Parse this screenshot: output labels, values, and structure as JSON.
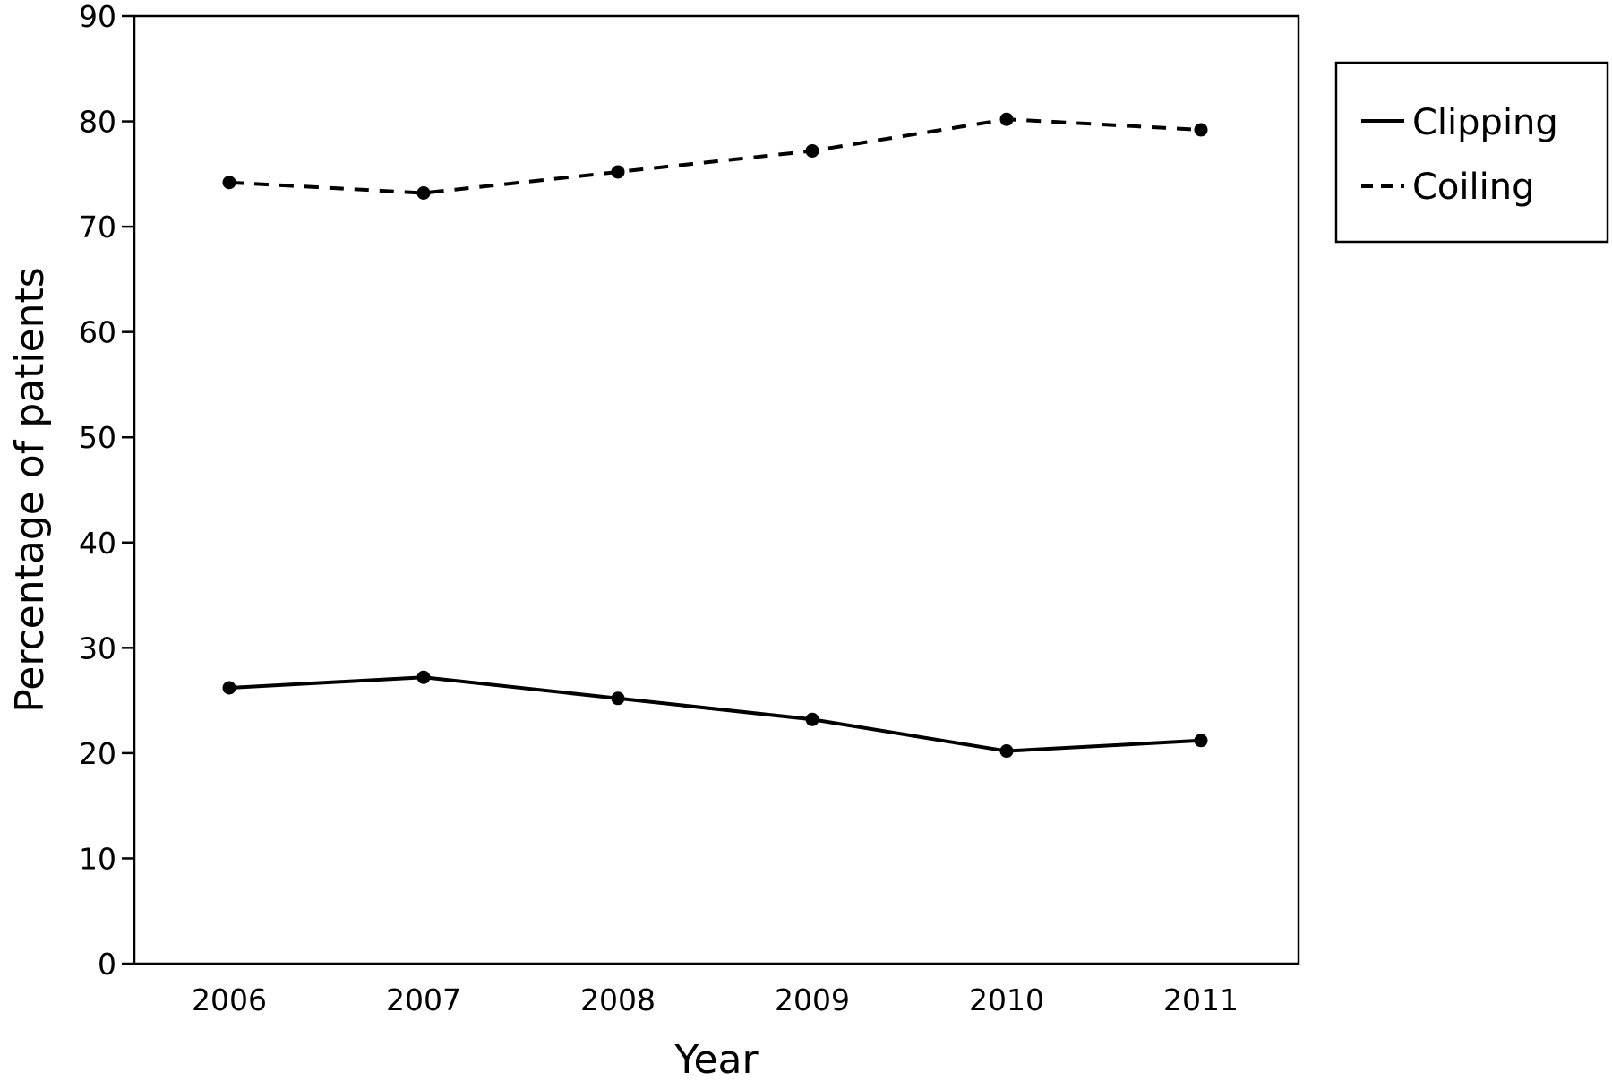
{
  "chart_data": {
    "type": "line",
    "title": "",
    "xlabel": "Year",
    "ylabel": "Percentage of patients",
    "categories": [
      "2006",
      "2007",
      "2008",
      "2009",
      "2010",
      "2011"
    ],
    "series": [
      {
        "name": "Clipping",
        "line_style": "solid",
        "values": [
          26.2,
          27.2,
          25.2,
          23.2,
          20.2,
          21.2
        ]
      },
      {
        "name": "Coiling",
        "line_style": "dashed",
        "values": [
          74.2,
          73.2,
          75.2,
          77.2,
          80.2,
          79.2
        ]
      }
    ],
    "ylim": [
      0,
      90
    ],
    "yticks": [
      "0",
      "10",
      "20",
      "30",
      "40",
      "50",
      "60",
      "70",
      "80",
      "90"
    ],
    "grid": false,
    "legend_position": "outside-right-top",
    "line_color": "#000000"
  }
}
